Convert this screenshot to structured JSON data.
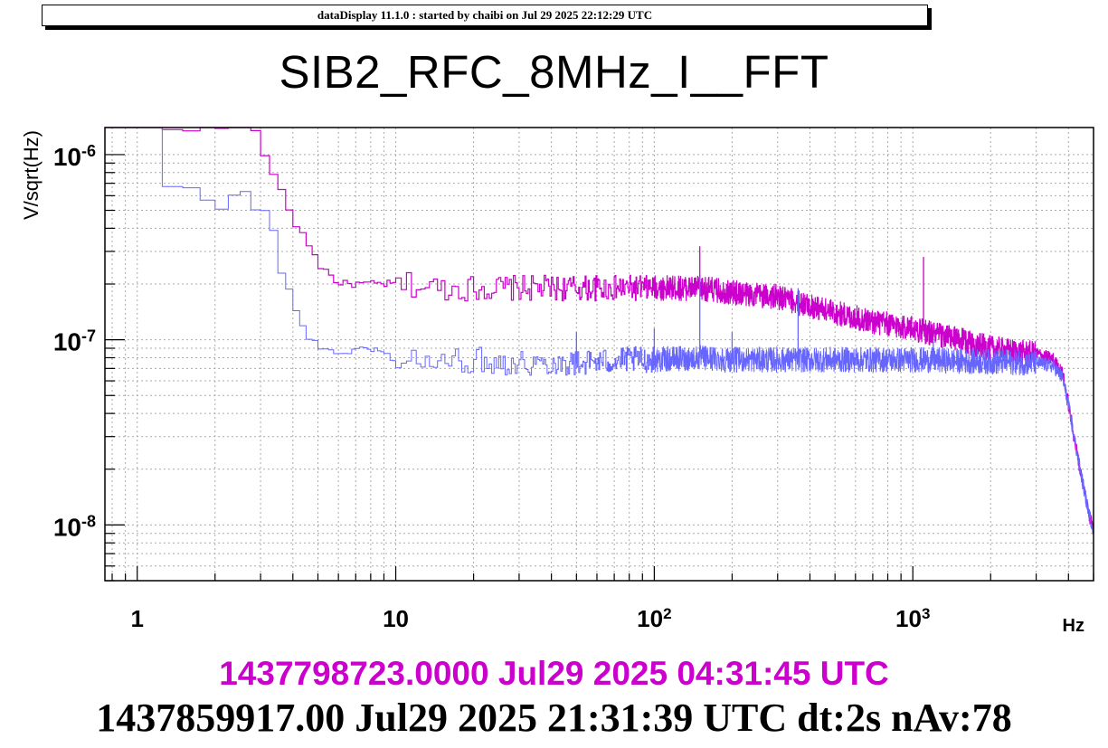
{
  "banner": "dataDisplay 11.1.0 : started by chaibi on Jul 29 2025 22:12:29 UTC",
  "timestamps": {
    "reference": "1437798723.0000 Jul29 2025 04:31:45 UTC",
    "current": "1437859917.00 Jul29 2025 21:31:39 UTC dt:2s nAv:78"
  },
  "colors": {
    "reference": "#cc00cc",
    "current": "#6666ff",
    "grid": "#aaaaaa"
  },
  "chart_data": {
    "type": "line",
    "title": "SIB2_RFC_8MHz_I__FFT",
    "xlabel": "Hz",
    "ylabel": "V/sqrt(Hz)",
    "x_scale": "log",
    "y_scale": "log",
    "xlim": [
      0.75,
      5000
    ],
    "ylim": [
      5e-09,
      1.4e-06
    ],
    "grid": true,
    "x_ticks": [
      {
        "value": 1,
        "label": "1"
      },
      {
        "value": 10,
        "label": "10"
      },
      {
        "value": 100,
        "label": "10",
        "exp": "2"
      },
      {
        "value": 1000,
        "label": "10",
        "exp": "3"
      }
    ],
    "y_ticks": [
      {
        "value": 1e-08,
        "label": "10",
        "exp": "-8"
      },
      {
        "value": 1e-07,
        "label": "10",
        "exp": "-7"
      },
      {
        "value": 1e-06,
        "label": "10",
        "exp": "-6"
      }
    ],
    "series": [
      {
        "color": "#cc00cc",
        "x": [
          0.75,
          1.0,
          2.0,
          2.75,
          3.0,
          3.25,
          3.5,
          4.0,
          4.5,
          5.0,
          6.0,
          8.0,
          10,
          15,
          20,
          30,
          50,
          80,
          100,
          150,
          200,
          300,
          500,
          700,
          1000,
          1500,
          2000,
          2500,
          3000,
          3500,
          3800,
          4000,
          4200,
          4500,
          4800,
          5000
        ],
        "y": [
          1.4e-06,
          1.4e-06,
          1.4e-06,
          1.4e-06,
          9.5e-07,
          8e-07,
          6.2e-07,
          4.2e-07,
          3.3e-07,
          2.5e-07,
          2e-07,
          2e-07,
          2e-07,
          1.9e-07,
          1.9e-07,
          1.9e-07,
          1.9e-07,
          1.9e-07,
          1.9e-07,
          1.9e-07,
          1.8e-07,
          1.7e-07,
          1.4e-07,
          1.25e-07,
          1.15e-07,
          1e-07,
          9e-08,
          8.6e-08,
          8.4e-08,
          7.8e-08,
          6.5e-08,
          4.5e-08,
          3e-08,
          1.8e-08,
          1.15e-08,
          9.5e-09
        ]
      },
      {
        "color": "#6666ff",
        "x": [
          0.75,
          1.0,
          1.25,
          1.5,
          2.0,
          2.5,
          2.75,
          3.0,
          3.25,
          3.5,
          4.0,
          4.5,
          5.0,
          6.0,
          8.0,
          10,
          15,
          20,
          30,
          50,
          80,
          100,
          150,
          200,
          300,
          500,
          1000,
          2000,
          3000,
          3500,
          3800,
          4000,
          4200,
          4500,
          4800,
          5000
        ],
        "y": [
          1.4e-06,
          1.4e-06,
          6.5e-07,
          6.5e-07,
          5.2e-07,
          6.5e-07,
          5e-07,
          5e-07,
          3.8e-07,
          2.3e-07,
          1.5e-07,
          1e-07,
          9e-08,
          8.5e-08,
          9e-08,
          7.8e-08,
          7.5e-08,
          7.8e-08,
          7.5e-08,
          7.5e-08,
          7.8e-08,
          7.8e-08,
          8e-08,
          7.8e-08,
          7.8e-08,
          7.8e-08,
          7.8e-08,
          7.6e-08,
          7.5e-08,
          7.2e-08,
          6.2e-08,
          4.4e-08,
          3e-08,
          1.8e-08,
          1.15e-08,
          9.5e-09
        ]
      }
    ],
    "spikes": [
      {
        "series": 0,
        "x": 150,
        "y": 3.2e-07
      },
      {
        "series": 0,
        "x": 1100,
        "y": 2.8e-07
      },
      {
        "series": 1,
        "x": 50,
        "y": 1.1e-07
      },
      {
        "series": 1,
        "x": 100,
        "y": 1.15e-07
      },
      {
        "series": 1,
        "x": 150,
        "y": 2.2e-07
      },
      {
        "series": 1,
        "x": 200,
        "y": 1.1e-07
      },
      {
        "series": 1,
        "x": 360,
        "y": 1.9e-07
      },
      {
        "series": 1,
        "x": 1200,
        "y": 1e-07
      }
    ]
  }
}
